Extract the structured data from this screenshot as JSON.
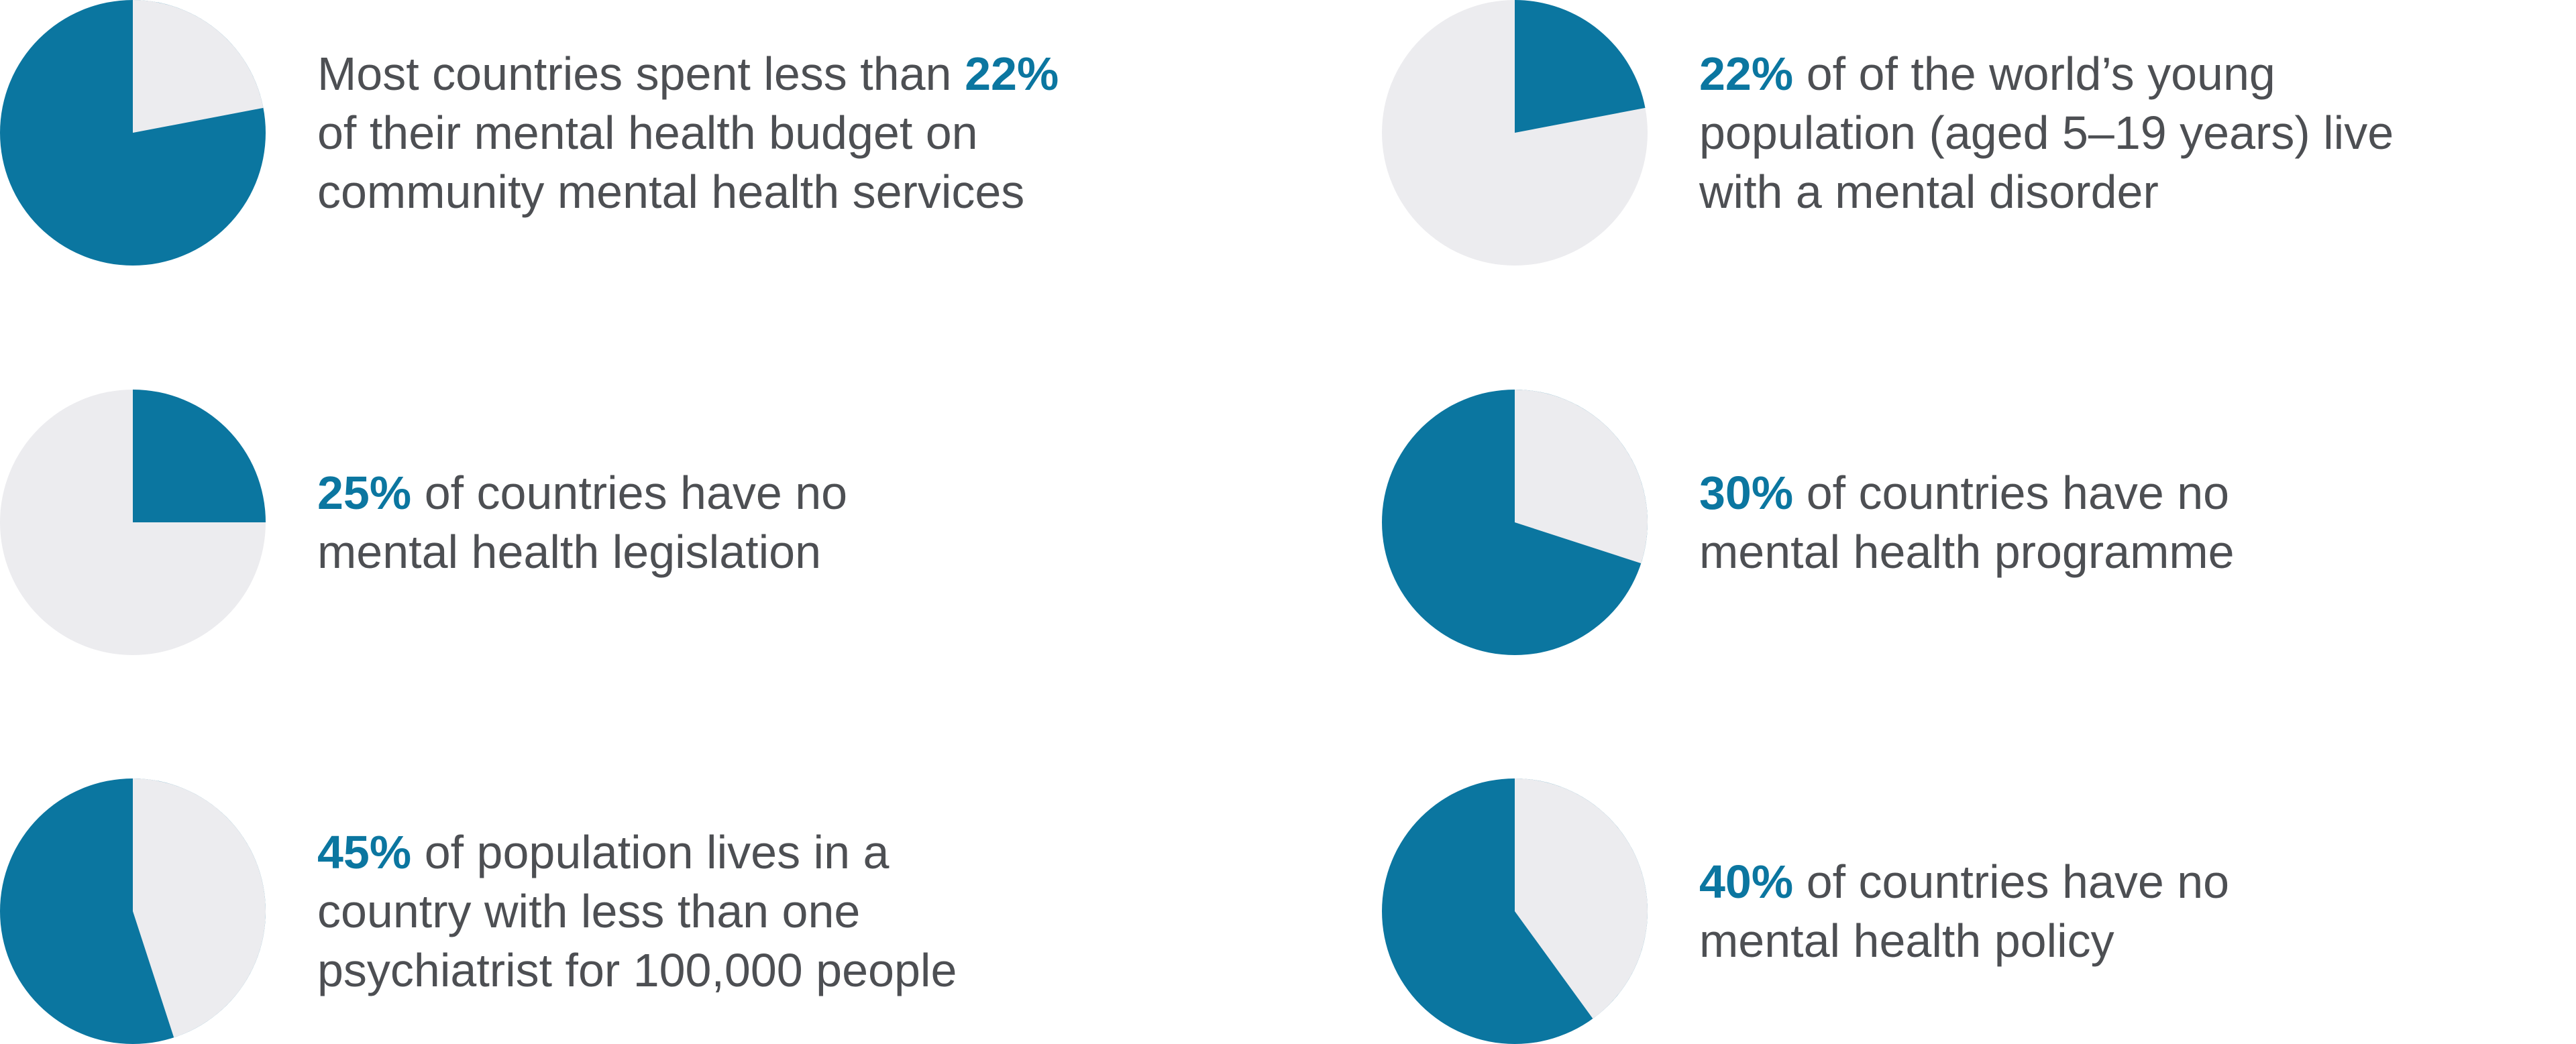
{
  "chart_data": [
    {
      "type": "pie",
      "values": [
        22
      ],
      "value_labels": [
        "22%"
      ],
      "colors": [
        "#ececef",
        "#0b76a0"
      ],
      "before": "Most countries spent less than",
      "more_lines": [
        "of their mental health budget on",
        "community mental health services"
      ]
    },
    {
      "type": "pie",
      "values": [
        22
      ],
      "value_labels": [
        "22%"
      ],
      "colors": [
        "#0b76a0",
        "#ececef"
      ],
      "same_line": "of of the world’s young",
      "more_lines": [
        "population (aged 5–19 years) live",
        "with a mental disorder"
      ]
    },
    {
      "type": "pie",
      "values": [
        25
      ],
      "value_labels": [
        "25%"
      ],
      "colors": [
        "#0b76a0",
        "#ececef"
      ],
      "same_line": "of countries have no",
      "more_lines": [
        "mental health legislation"
      ]
    },
    {
      "type": "pie",
      "values": [
        30
      ],
      "value_labels": [
        "30%"
      ],
      "colors": [
        "#ececef",
        "#0b76a0"
      ],
      "same_line": "of countries have no",
      "more_lines": [
        "mental health programme"
      ]
    },
    {
      "type": "pie",
      "values": [
        45
      ],
      "value_labels": [
        "45%"
      ],
      "colors": [
        "#ececef",
        "#0b76a0"
      ],
      "same_line": "of population lives in a",
      "more_lines": [
        "country with less than one",
        "psychiatrist for 100,000 people"
      ]
    },
    {
      "type": "pie",
      "values": [
        40
      ],
      "value_labels": [
        "40%"
      ],
      "colors": [
        "#ececef",
        "#0b76a0"
      ],
      "same_line": "of countries have no",
      "more_lines": [
        "mental health policy"
      ]
    }
  ]
}
